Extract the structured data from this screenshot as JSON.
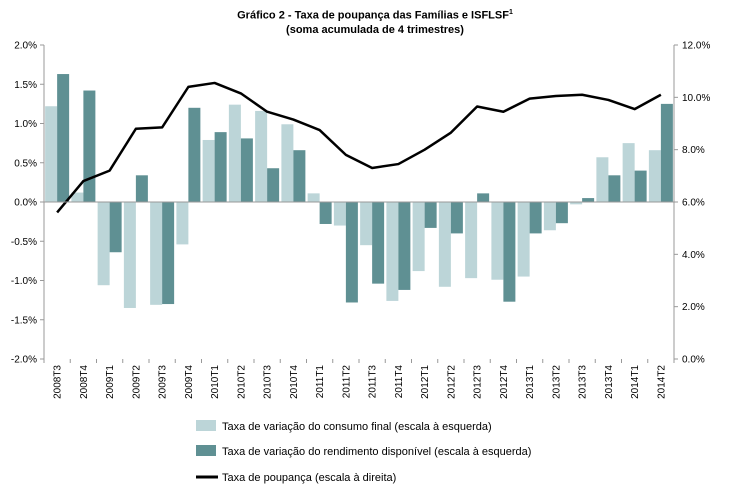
{
  "chart_data": {
    "type": "bar+line",
    "title": "Gráfico  2 - Taxa de poupança  das Famílias e ISFLSF",
    "title_sup": "1",
    "subtitle": "(soma acumulada de 4 trimestres)",
    "categories": [
      "2008T3",
      "2008T4",
      "2009T1",
      "2009T2",
      "2009T3",
      "2009T4",
      "2010T1",
      "2010T2",
      "2010T3",
      "2010T4",
      "2011T1",
      "2011T2",
      "2011T3",
      "2011T4",
      "2012T1",
      "2012T2",
      "2012T3",
      "2012T4",
      "2013T1",
      "2013T2",
      "2013T3",
      "2013T4",
      "2014T1",
      "2014T2"
    ],
    "left_axis": {
      "ylim": [
        -2.0,
        2.0
      ],
      "ticks": [
        "2.0%",
        "1.5%",
        "1.0%",
        "0.5%",
        "0.0%",
        "-0.5%",
        "-1.0%",
        "-1.5%",
        "-2.0%"
      ],
      "tick_values": [
        2.0,
        1.5,
        1.0,
        0.5,
        0.0,
        -0.5,
        -1.0,
        -1.5,
        -2.0
      ]
    },
    "right_axis": {
      "ylim": [
        0.0,
        12.0
      ],
      "ticks": [
        "12.0%",
        "10.0%",
        "8.0%",
        "6.0%",
        "4.0%",
        "2.0%",
        "0.0%"
      ],
      "tick_values": [
        12,
        10,
        8,
        6,
        4,
        2,
        0
      ]
    },
    "series": [
      {
        "name": "Taxa de variação do consumo final (escala à esquerda)",
        "type": "bar",
        "axis": "left",
        "color": "#bcd5d8",
        "values": [
          1.22,
          0.12,
          -1.06,
          -1.35,
          -1.31,
          -0.54,
          0.79,
          1.24,
          1.16,
          0.99,
          0.11,
          -0.3,
          -0.55,
          -1.26,
          -0.88,
          -1.08,
          -0.97,
          -0.99,
          -0.95,
          -0.36,
          -0.03,
          0.57,
          0.75,
          0.66
        ]
      },
      {
        "name": "Taxa de variação do rendimento disponível (escala à esquerda)",
        "type": "bar",
        "axis": "left",
        "color": "#5f9093",
        "values": [
          1.63,
          1.42,
          -0.64,
          0.34,
          -1.3,
          1.2,
          0.89,
          0.81,
          0.43,
          0.66,
          -0.28,
          -1.28,
          -1.04,
          -1.12,
          -0.33,
          -0.4,
          0.11,
          -1.27,
          -0.4,
          -0.27,
          0.05,
          0.34,
          0.4,
          1.25
        ]
      },
      {
        "name": "Taxa de poupança (escala à direita)",
        "type": "line",
        "axis": "right",
        "color": "#000000",
        "values": [
          5.6,
          6.8,
          7.2,
          8.8,
          8.85,
          10.4,
          10.55,
          10.15,
          9.45,
          9.15,
          8.75,
          7.8,
          7.3,
          7.45,
          8.0,
          8.65,
          9.65,
          9.45,
          9.95,
          10.05,
          10.1,
          9.9,
          9.55,
          10.1
        ]
      }
    ],
    "legend_position": "bottom-left",
    "grid": false
  }
}
